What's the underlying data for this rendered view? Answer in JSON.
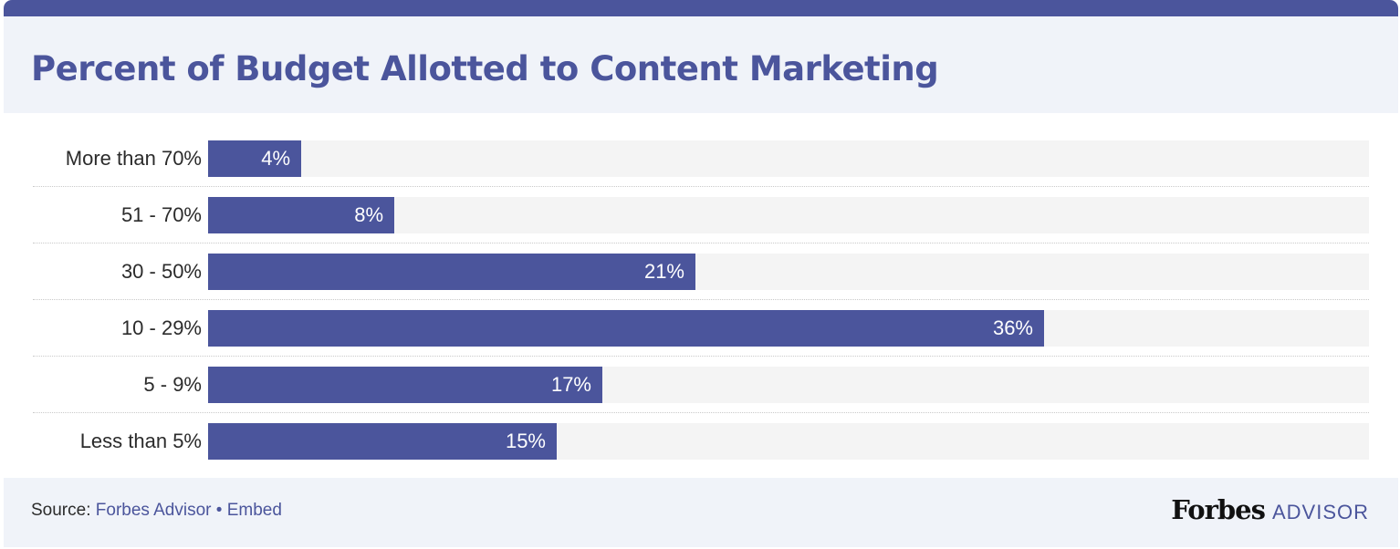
{
  "header": {
    "title": "Percent of Budget Allotted to Content Marketing"
  },
  "chart_data": {
    "type": "bar",
    "orientation": "horizontal",
    "title": "Percent of Budget Allotted to Content Marketing",
    "categories": [
      "More than 70%",
      "51 - 70%",
      "30 - 50%",
      "10 - 29%",
      "5 - 9%",
      "Less than 5%"
    ],
    "values": [
      4,
      8,
      21,
      36,
      17,
      15
    ],
    "value_labels": [
      "4%",
      "8%",
      "21%",
      "36%",
      "17%",
      "15%"
    ],
    "xlim": [
      0,
      50
    ],
    "bar_color": "#4b559c",
    "track_color": "#f4f4f4"
  },
  "footer": {
    "source_prefix": "Source: ",
    "source_link": "Forbes Advisor",
    "separator": " • ",
    "embed_label": "Embed",
    "logo_brand": "Forbes",
    "logo_sub": "ADVISOR"
  },
  "colors": {
    "accent": "#4b559c",
    "header_bg": "#f0f3f9"
  }
}
